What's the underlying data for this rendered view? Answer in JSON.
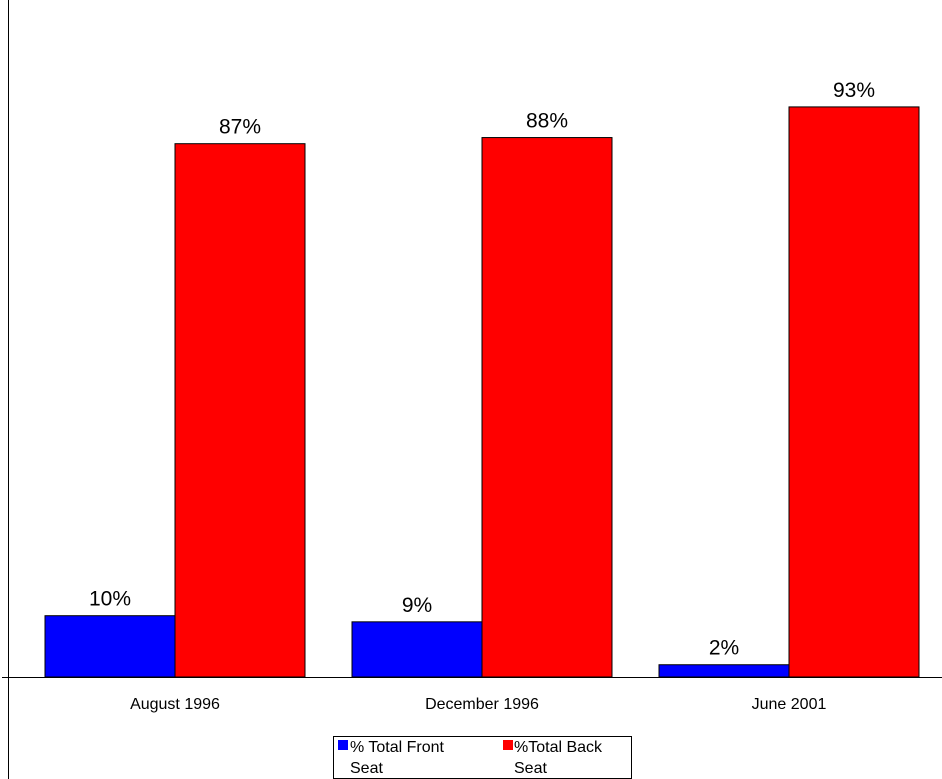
{
  "chart_data": {
    "type": "bar",
    "categories": [
      "August 1996",
      "December 1996",
      "June 2001"
    ],
    "series": [
      {
        "name": "% Total Front Seat",
        "values": [
          10,
          9,
          2
        ],
        "labels": [
          "10%",
          "9%",
          "2%"
        ],
        "color": "#0000FF"
      },
      {
        "name": "%Total Back Seat",
        "values": [
          87,
          88,
          93
        ],
        "labels": [
          "87%",
          "88%",
          "93%"
        ],
        "color": "#FF0000"
      }
    ],
    "ylim": [
      0,
      100
    ],
    "title": "",
    "xlabel": "",
    "ylabel": "",
    "grid": false,
    "legend_position": "bottom",
    "legend_lines": [
      [
        "% Total Front",
        "Seat"
      ],
      [
        "%Total Back",
        "Seat"
      ]
    ]
  }
}
